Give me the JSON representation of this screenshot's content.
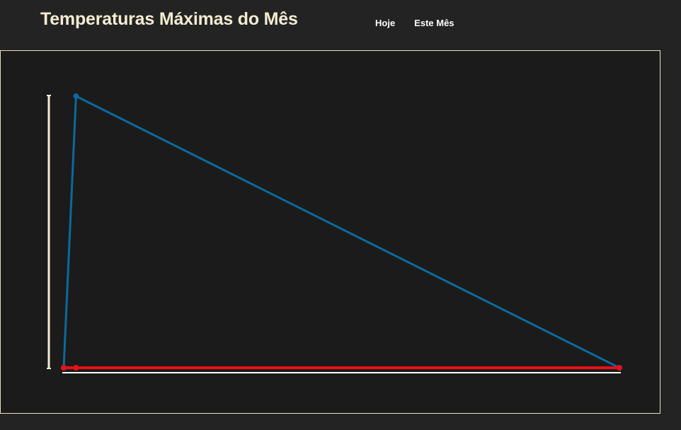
{
  "header": {
    "title": "Temperaturas Máximas do Mês",
    "nav": [
      {
        "label": "Hoje"
      },
      {
        "label": "Este Mês"
      }
    ]
  },
  "colors": {
    "background": "#232323",
    "panel": "#1b1b1b",
    "title": "#f3ecd2",
    "axis": "#f3ecd2",
    "series_blue": "#0b6a9b",
    "series_red": "#e8101a"
  },
  "chart_data": {
    "type": "line",
    "title": "",
    "xlabel": "",
    "ylabel": "",
    "grid": false,
    "xlim": [
      0,
      45
    ],
    "ylim": [
      0,
      22
    ],
    "series": [
      {
        "color": "#0b6a9b",
        "x": [
          0,
          1,
          45
        ],
        "y": [
          0,
          22,
          0
        ]
      },
      {
        "color": "#e8101a",
        "x": [
          0,
          1,
          45
        ],
        "y": [
          0,
          0,
          0
        ]
      }
    ]
  }
}
